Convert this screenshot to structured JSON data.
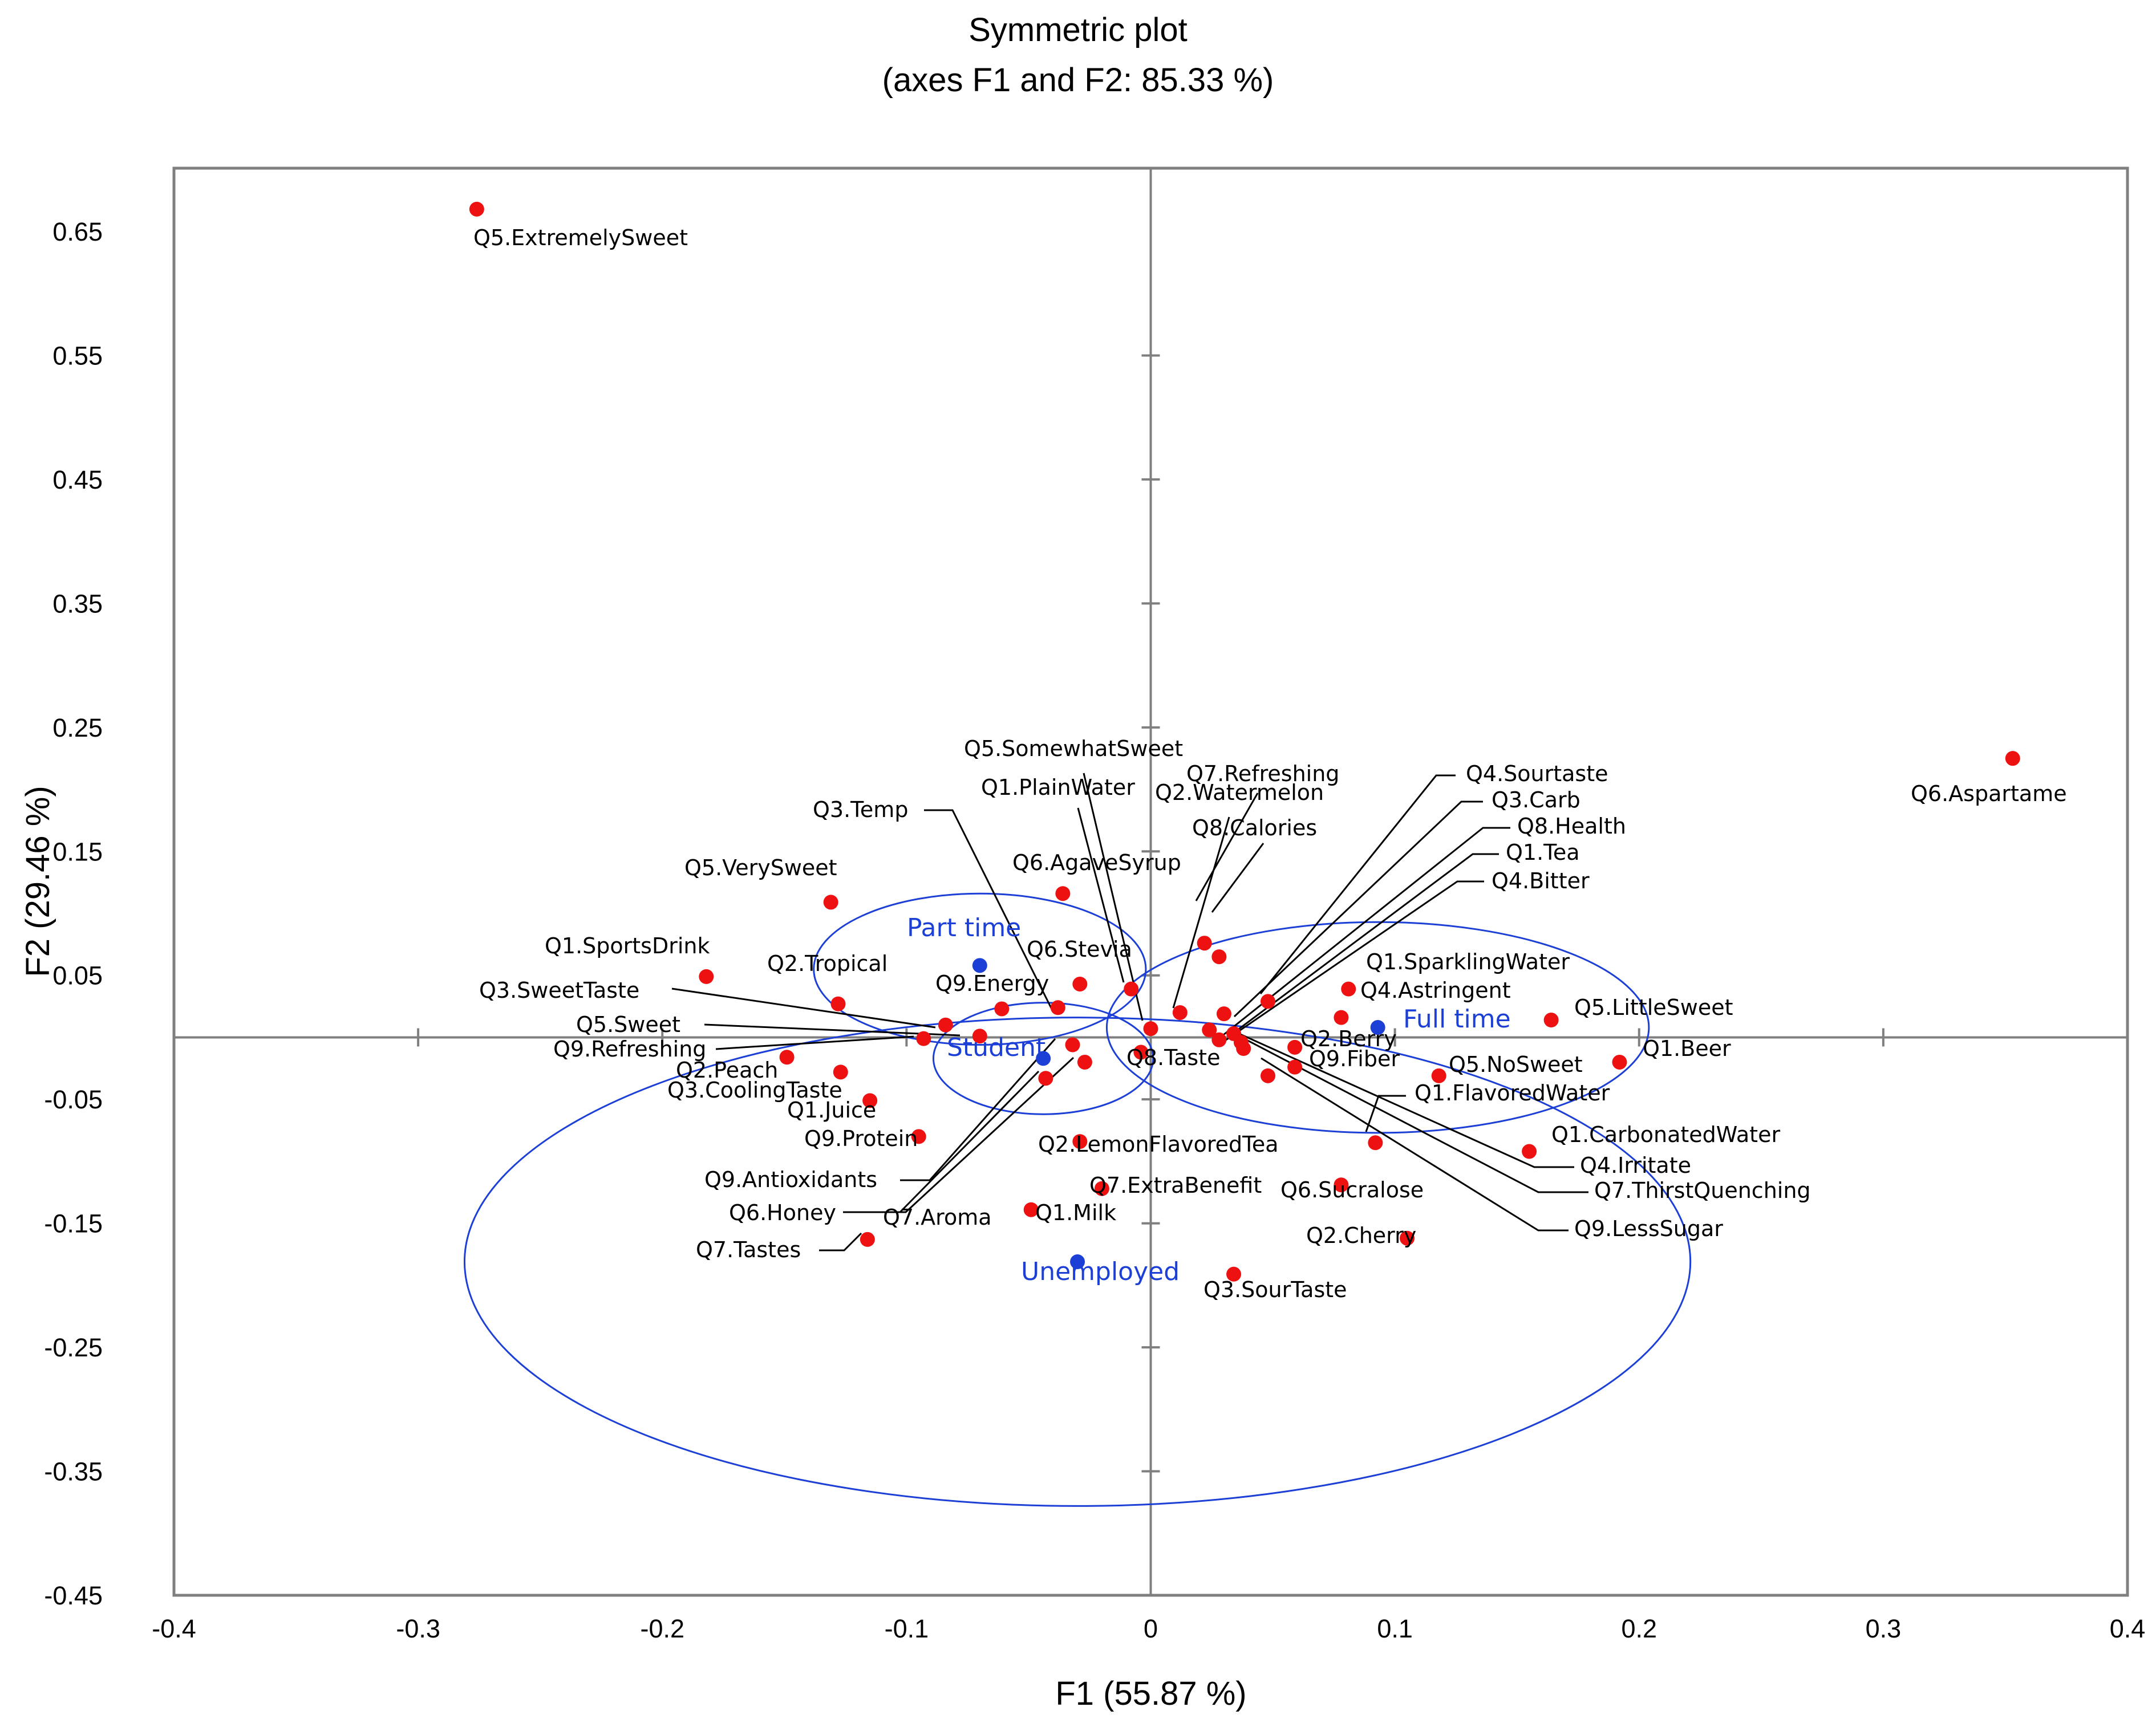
{
  "chart_data": {
    "type": "scatter",
    "title": "Symmetric plot",
    "subtitle": "(axes F1 and F2: 85.33 %)",
    "xlabel": "F1 (55.87 %)",
    "ylabel": "F2 (29.46 %)",
    "xlim": [
      -0.4,
      0.4
    ],
    "ylim": [
      -0.45,
      0.7
    ],
    "grid": false,
    "x_ticks": [
      "-0.4",
      "-0.3",
      "-0.2",
      "-0.1",
      "0",
      "0.1",
      "0.2",
      "0.3",
      "0.4"
    ],
    "x_tick_values": [
      -0.4,
      -0.3,
      -0.2,
      -0.1,
      0,
      0.1,
      0.2,
      0.3,
      0.4
    ],
    "y_ticks": [
      "0.65",
      "0.55",
      "0.45",
      "0.35",
      "0.25",
      "0.15",
      "0.05",
      "-0.05",
      "-0.15",
      "-0.25",
      "-0.35",
      "-0.45"
    ],
    "y_tick_values": [
      0.65,
      0.55,
      0.45,
      0.35,
      0.25,
      0.15,
      0.05,
      -0.05,
      -0.15,
      -0.25,
      -0.35,
      -0.45
    ],
    "colors": {
      "attribute": "#ee1111",
      "group": "#1c3fd6",
      "ellipse": "#1c3fd6",
      "axis": "#7f7f7f"
    },
    "series": [
      {
        "name": "Attributes",
        "points": [
          {
            "label": "Q5.ExtremelySweet",
            "x": -0.276,
            "y": 0.668
          },
          {
            "label": "Q6.Aspartame",
            "x": 0.353,
            "y": 0.225
          },
          {
            "label": "Q5.VerySweet",
            "x": -0.131,
            "y": 0.109
          },
          {
            "label": "Q6.AgaveSyrup",
            "x": -0.036,
            "y": 0.116
          },
          {
            "label": "Q1.SportsDrink",
            "x": -0.182,
            "y": 0.049
          },
          {
            "label": "Q2.Tropical",
            "x": -0.128,
            "y": 0.027
          },
          {
            "label": "Q9.Energy",
            "x": -0.061,
            "y": 0.023
          },
          {
            "label": "Q3.Temp",
            "x": -0.038,
            "y": 0.024
          },
          {
            "label": "Q3.SweetTaste",
            "x": -0.084,
            "y": 0.01
          },
          {
            "label": "Q5.Sweet",
            "x": -0.07,
            "y": 0.001
          },
          {
            "label": "Q9.Refreshing",
            "x": -0.093,
            "y": -0.001
          },
          {
            "label": "Q2.Peach",
            "x": -0.149,
            "y": -0.016
          },
          {
            "label": "Q3.CoolingTaste",
            "x": -0.127,
            "y": -0.028
          },
          {
            "label": "Q1.Juice",
            "x": -0.115,
            "y": -0.051
          },
          {
            "label": "Q9.Protein",
            "x": -0.095,
            "y": -0.08
          },
          {
            "label": "Q6.Stevia",
            "x": -0.029,
            "y": 0.043
          },
          {
            "label": "Q5.SomewhatSweet",
            "x": 0.0,
            "y": 0.007
          },
          {
            "label": "Q1.PlainWater",
            "x": -0.008,
            "y": 0.039
          },
          {
            "label": "Q7.Refreshing",
            "x": 0.022,
            "y": 0.076
          },
          {
            "label": "Q8.Calories",
            "x": 0.028,
            "y": 0.065
          },
          {
            "label": "Q2.Watermelon",
            "x": 0.012,
            "y": 0.02
          },
          {
            "label": "Q4.Sourtaste",
            "x": 0.048,
            "y": 0.029
          },
          {
            "label": "Q3.Carb",
            "x": 0.03,
            "y": 0.019
          },
          {
            "label": "Q8.Health",
            "x": 0.024,
            "y": 0.006
          },
          {
            "label": "Q1.Tea",
            "x": 0.034,
            "y": 0.003
          },
          {
            "label": "Q4.Bitter",
            "x": 0.028,
            "y": -0.002
          },
          {
            "label": "Q1.SparklingWater",
            "x": 0.081,
            "y": 0.039
          },
          {
            "label": "Q4.Astringent",
            "x": 0.078,
            "y": 0.016
          },
          {
            "label": "Q5.LittleSweet",
            "x": 0.164,
            "y": 0.014
          },
          {
            "label": "Q2.Berry",
            "x": 0.059,
            "y": -0.008
          },
          {
            "label": "Q9.Fiber",
            "x": 0.059,
            "y": -0.024
          },
          {
            "label": "Q5.NoSweet",
            "x": 0.118,
            "y": -0.031
          },
          {
            "label": "Q1.Beer",
            "x": 0.192,
            "y": -0.02
          },
          {
            "label": "Q8.Taste",
            "x": -0.004,
            "y": -0.012
          },
          {
            "label": "Q1.FlavoredWater",
            "x": 0.092,
            "y": -0.085
          },
          {
            "label": "Q1.CarbonatedWater",
            "x": 0.155,
            "y": -0.092
          },
          {
            "label": "Q4.Irritate",
            "x": 0.038,
            "y": -0.009
          },
          {
            "label": "Q7.ThirstQuenching",
            "x": 0.037,
            "y": -0.004
          },
          {
            "label": "Q9.LessSugar",
            "x": 0.048,
            "y": -0.031
          },
          {
            "label": "Q2.LemonFlavoredTea",
            "x": -0.029,
            "y": -0.084
          },
          {
            "label": "Q7.ExtraBenefit",
            "x": -0.02,
            "y": -0.122
          },
          {
            "label": "Q6.Sucralose",
            "x": 0.078,
            "y": -0.119
          },
          {
            "label": "Q1.Milk",
            "x": -0.049,
            "y": -0.139
          },
          {
            "label": "Q2.Cherry",
            "x": 0.105,
            "y": -0.162
          },
          {
            "label": "Q3.SourTaste",
            "x": 0.034,
            "y": -0.191
          },
          {
            "label": "Q9.Antioxidants",
            "x": -0.032,
            "y": -0.006
          },
          {
            "label": "Q6.Honey",
            "x": -0.043,
            "y": -0.033
          },
          {
            "label": "Q7.Aroma",
            "x": -0.027,
            "y": -0.02
          },
          {
            "label": "Q7.Tastes",
            "x": -0.116,
            "y": -0.163
          }
        ]
      },
      {
        "name": "Employment status",
        "points": [
          {
            "label": "Part time",
            "x": -0.07,
            "y": 0.058
          },
          {
            "label": "Full time",
            "x": 0.093,
            "y": 0.008
          },
          {
            "label": "Student",
            "x": -0.044,
            "y": -0.017
          },
          {
            "label": "Unemployed",
            "x": -0.03,
            "y": -0.181
          }
        ]
      }
    ],
    "ellipses": [
      {
        "group": "Part time",
        "cx": -0.07,
        "cy": 0.055,
        "rx": 0.068,
        "ry": 0.061
      },
      {
        "group": "Full time",
        "cx": 0.093,
        "cy": 0.008,
        "rx": 0.111,
        "ry": 0.085
      },
      {
        "group": "Student",
        "cx": -0.044,
        "cy": -0.017,
        "rx": 0.045,
        "ry": 0.045
      },
      {
        "group": "Unemployed",
        "cx": -0.03,
        "cy": -0.181,
        "rx": 0.251,
        "ry": 0.197
      }
    ]
  }
}
